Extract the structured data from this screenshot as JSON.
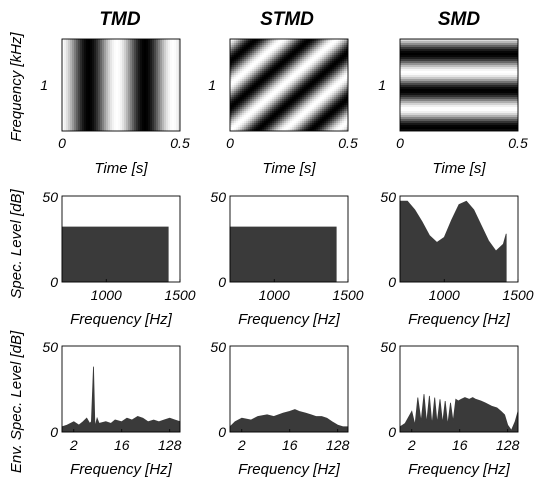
{
  "figure": {
    "column_titles": [
      "TMD",
      "STMD",
      "SMD"
    ]
  },
  "chart_data": [
    {
      "panel": "TMD-spectrogram",
      "type": "heatmap",
      "title": "TMD",
      "xlabel": "Time [s]",
      "ylabel": "Frequency [kHz]",
      "xticks": [
        "0",
        "0.5"
      ],
      "yticks": [
        "1"
      ],
      "xlim": [
        0,
        0.5
      ],
      "pattern": {
        "temporal_cycles": 2.1,
        "spectral_cycles": 0
      }
    },
    {
      "panel": "STMD-spectrogram",
      "type": "heatmap",
      "title": "STMD",
      "xlabel": "Time [s]",
      "ylabel": "",
      "xticks": [
        "0",
        "0.5"
      ],
      "yticks": [
        "1"
      ],
      "xlim": [
        0,
        0.5
      ],
      "pattern": {
        "temporal_cycles": 2.2,
        "spectral_cycles": 2.0
      }
    },
    {
      "panel": "SMD-spectrogram",
      "type": "heatmap",
      "title": "SMD",
      "xlabel": "Time [s]",
      "ylabel": "",
      "xticks": [
        "0",
        "0.5"
      ],
      "yticks": [
        "1"
      ],
      "xlim": [
        0,
        0.5
      ],
      "pattern": {
        "temporal_cycles": 0,
        "spectral_cycles": 2.5
      }
    },
    {
      "panel": "TMD-spectrum",
      "type": "area",
      "xlabel": "Frequency [Hz]",
      "ylabel": "Spec. Level [dB]",
      "xlim": [
        700,
        1500
      ],
      "ylim": [
        0,
        50
      ],
      "xticks": [
        "1000",
        "1500"
      ],
      "yticks": [
        "0",
        "50"
      ],
      "x": [
        700,
        750,
        800,
        850,
        900,
        950,
        1000,
        1050,
        1100,
        1150,
        1200,
        1250,
        1300,
        1350,
        1400,
        1420
      ],
      "y": [
        32,
        32,
        32,
        32,
        32,
        32,
        32,
        32,
        32,
        32,
        32,
        32,
        32,
        32,
        32,
        32
      ]
    },
    {
      "panel": "STMD-spectrum",
      "type": "area",
      "xlabel": "Frequency [Hz]",
      "ylabel": "",
      "xlim": [
        700,
        1500
      ],
      "ylim": [
        0,
        50
      ],
      "xticks": [
        "1000",
        "1500"
      ],
      "yticks": [
        "0",
        "50"
      ],
      "x": [
        700,
        750,
        800,
        850,
        900,
        950,
        1000,
        1050,
        1100,
        1150,
        1200,
        1250,
        1300,
        1350,
        1400,
        1420
      ],
      "y": [
        32,
        32,
        32,
        32,
        32,
        32,
        32,
        32,
        32,
        32,
        32,
        32,
        32,
        32,
        32,
        32
      ]
    },
    {
      "panel": "SMD-spectrum",
      "type": "area",
      "xlabel": "Frequency [Hz]",
      "ylabel": "",
      "xlim": [
        700,
        1500
      ],
      "ylim": [
        0,
        50
      ],
      "xticks": [
        "1000",
        "1500"
      ],
      "yticks": [
        "0",
        "50"
      ],
      "x": [
        700,
        750,
        800,
        850,
        900,
        950,
        1000,
        1050,
        1100,
        1150,
        1200,
        1250,
        1300,
        1350,
        1400,
        1420
      ],
      "y": [
        47,
        47,
        42,
        35,
        27,
        23,
        26,
        36,
        45,
        47,
        42,
        33,
        24,
        18,
        22,
        28
      ]
    },
    {
      "panel": "TMD-envelope-spectrum",
      "type": "area",
      "xlabel": "Frequency [Hz]",
      "ylabel": "Env. Spec. Level [dB]",
      "xscale": "log2",
      "xlim": [
        1.2,
        200
      ],
      "ylim": [
        0,
        50
      ],
      "xticks": [
        "2",
        "16",
        "128"
      ],
      "yticks": [
        "0",
        "50"
      ],
      "x": [
        1.2,
        1.5,
        2,
        2.5,
        3,
        3.5,
        4,
        4.3,
        4.7,
        5,
        5.5,
        6,
        8,
        10,
        12,
        16,
        20,
        25,
        32,
        40,
        50,
        64,
        80,
        100,
        128,
        160,
        200
      ],
      "y": [
        3,
        4,
        6,
        4,
        6,
        8,
        5,
        6,
        38,
        3,
        8,
        5,
        6,
        5,
        7,
        6,
        8,
        7,
        9,
        8,
        6,
        7,
        6,
        7,
        8,
        7,
        6
      ]
    },
    {
      "panel": "STMD-envelope-spectrum",
      "type": "area",
      "xlabel": "Frequency [Hz]",
      "ylabel": "",
      "xscale": "log2",
      "xlim": [
        1.2,
        200
      ],
      "ylim": [
        0,
        50
      ],
      "xticks": [
        "2",
        "16",
        "128"
      ],
      "yticks": [
        "0",
        "50"
      ],
      "x": [
        1.2,
        1.5,
        2,
        3,
        4,
        6,
        8,
        12,
        16,
        20,
        24,
        32,
        40,
        50,
        64,
        80,
        100,
        128,
        160,
        200
      ],
      "y": [
        3,
        6,
        8,
        7,
        9,
        10,
        9,
        11,
        12,
        13,
        12,
        11,
        10,
        9,
        9,
        8,
        6,
        4,
        3,
        3
      ]
    },
    {
      "panel": "SMD-envelope-spectrum",
      "type": "area",
      "xlabel": "Frequency [Hz]",
      "ylabel": "",
      "xscale": "log2",
      "xlim": [
        1.2,
        200
      ],
      "ylim": [
        0,
        50
      ],
      "xticks": [
        "2",
        "16",
        "128"
      ],
      "yticks": [
        "0",
        "50"
      ],
      "x": [
        1.2,
        1.5,
        2,
        2.3,
        2.6,
        3,
        3.4,
        3.8,
        4.3,
        4.8,
        5.4,
        6,
        6.8,
        7.6,
        8.5,
        9.5,
        10.7,
        12,
        13.5,
        15,
        17,
        20,
        24,
        28,
        32,
        40,
        48,
        64,
        80,
        96,
        112,
        128,
        150,
        176,
        200
      ],
      "y": [
        3,
        5,
        12,
        4,
        20,
        6,
        22,
        5,
        21,
        4,
        20,
        5,
        19,
        5,
        18,
        4,
        17,
        6,
        19,
        18,
        19,
        20,
        19,
        20,
        19,
        18,
        17,
        15,
        14,
        12,
        10,
        4,
        1,
        6,
        12
      ]
    }
  ]
}
